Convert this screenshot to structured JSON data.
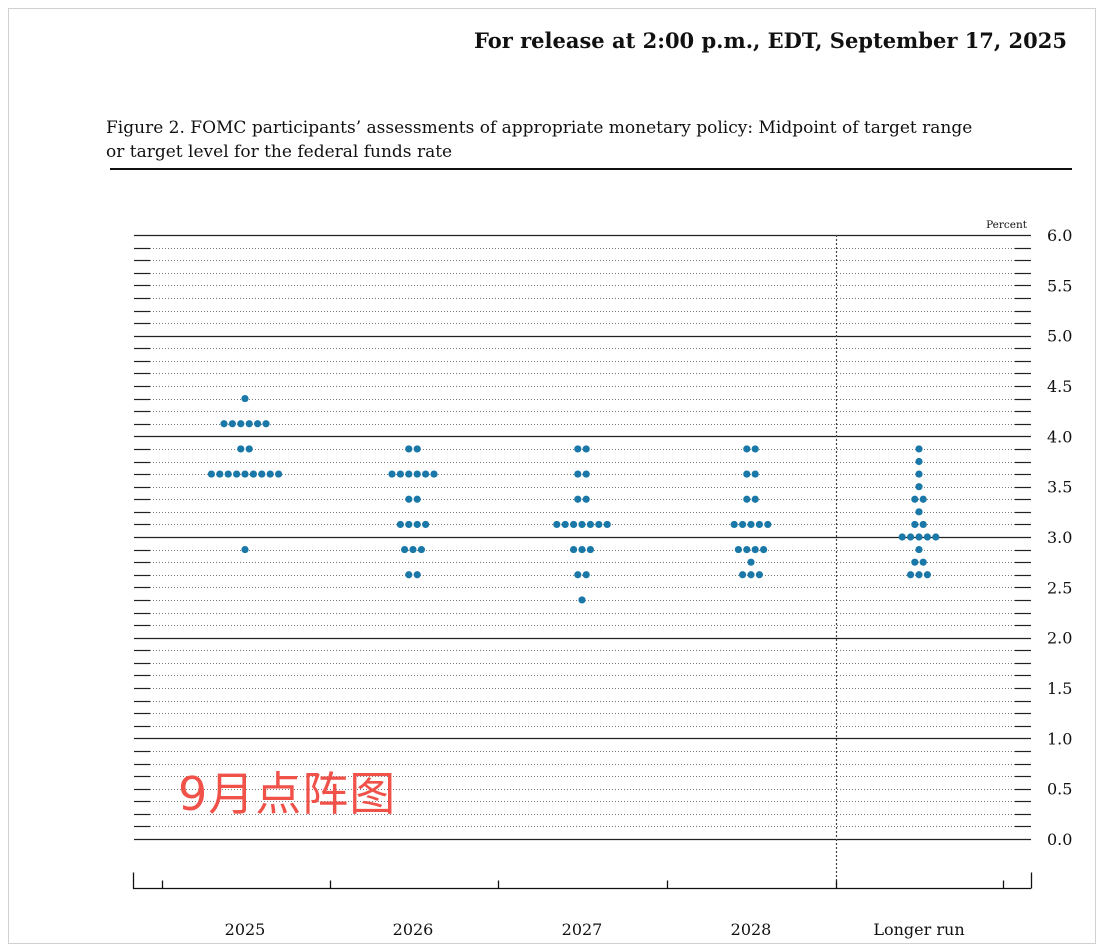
{
  "header": {
    "release_line": "For release at 2:00 p.m., EDT, September 17, 2025"
  },
  "figure": {
    "title_line1": "Figure 2. FOMC participants’ assessments of appropriate monetary policy: Midpoint of target range",
    "title_line2": "or target level for the federal funds rate"
  },
  "watermark": {
    "text": "9月点阵图"
  },
  "chart_data": {
    "type": "scatter",
    "unit_label": "Percent",
    "ylim": [
      0.0,
      6.0
    ],
    "y_ticks": [
      "6.0",
      "5.5",
      "5.0",
      "4.5",
      "4.0",
      "3.5",
      "3.0",
      "2.5",
      "2.0",
      "1.5",
      "1.0",
      "0.5",
      "0.0"
    ],
    "categories": [
      "2025",
      "2026",
      "2027",
      "2028",
      "Longer run"
    ],
    "dot_color": "#1a78a8",
    "grid": "dotted every 0.125, solid every 1.0",
    "columns": [
      {
        "category": "2025",
        "levels": [
          {
            "y": 4.375,
            "count": 1
          },
          {
            "y": 4.125,
            "count": 6
          },
          {
            "y": 3.875,
            "count": 2
          },
          {
            "y": 3.625,
            "count": 9
          },
          {
            "y": 2.875,
            "count": 1
          }
        ]
      },
      {
        "category": "2026",
        "levels": [
          {
            "y": 3.875,
            "count": 2
          },
          {
            "y": 3.625,
            "count": 6
          },
          {
            "y": 3.375,
            "count": 2
          },
          {
            "y": 3.125,
            "count": 4
          },
          {
            "y": 2.875,
            "count": 3
          },
          {
            "y": 2.625,
            "count": 2
          }
        ]
      },
      {
        "category": "2027",
        "levels": [
          {
            "y": 3.875,
            "count": 2
          },
          {
            "y": 3.625,
            "count": 2
          },
          {
            "y": 3.375,
            "count": 2
          },
          {
            "y": 3.125,
            "count": 7
          },
          {
            "y": 2.875,
            "count": 3
          },
          {
            "y": 2.625,
            "count": 2
          },
          {
            "y": 2.375,
            "count": 1
          }
        ]
      },
      {
        "category": "2028",
        "levels": [
          {
            "y": 3.875,
            "count": 2
          },
          {
            "y": 3.625,
            "count": 2
          },
          {
            "y": 3.375,
            "count": 2
          },
          {
            "y": 3.125,
            "count": 5
          },
          {
            "y": 2.875,
            "count": 4
          },
          {
            "y": 2.75,
            "count": 1
          },
          {
            "y": 2.625,
            "count": 3
          }
        ]
      },
      {
        "category": "Longer run",
        "levels": [
          {
            "y": 3.875,
            "count": 1
          },
          {
            "y": 3.75,
            "count": 1
          },
          {
            "y": 3.625,
            "count": 1
          },
          {
            "y": 3.5,
            "count": 1
          },
          {
            "y": 3.375,
            "count": 2
          },
          {
            "y": 3.25,
            "count": 1
          },
          {
            "y": 3.125,
            "count": 2
          },
          {
            "y": 3.0,
            "count": 5
          },
          {
            "y": 2.875,
            "count": 1
          },
          {
            "y": 2.75,
            "count": 2
          },
          {
            "y": 2.625,
            "count": 3
          }
        ]
      }
    ]
  }
}
